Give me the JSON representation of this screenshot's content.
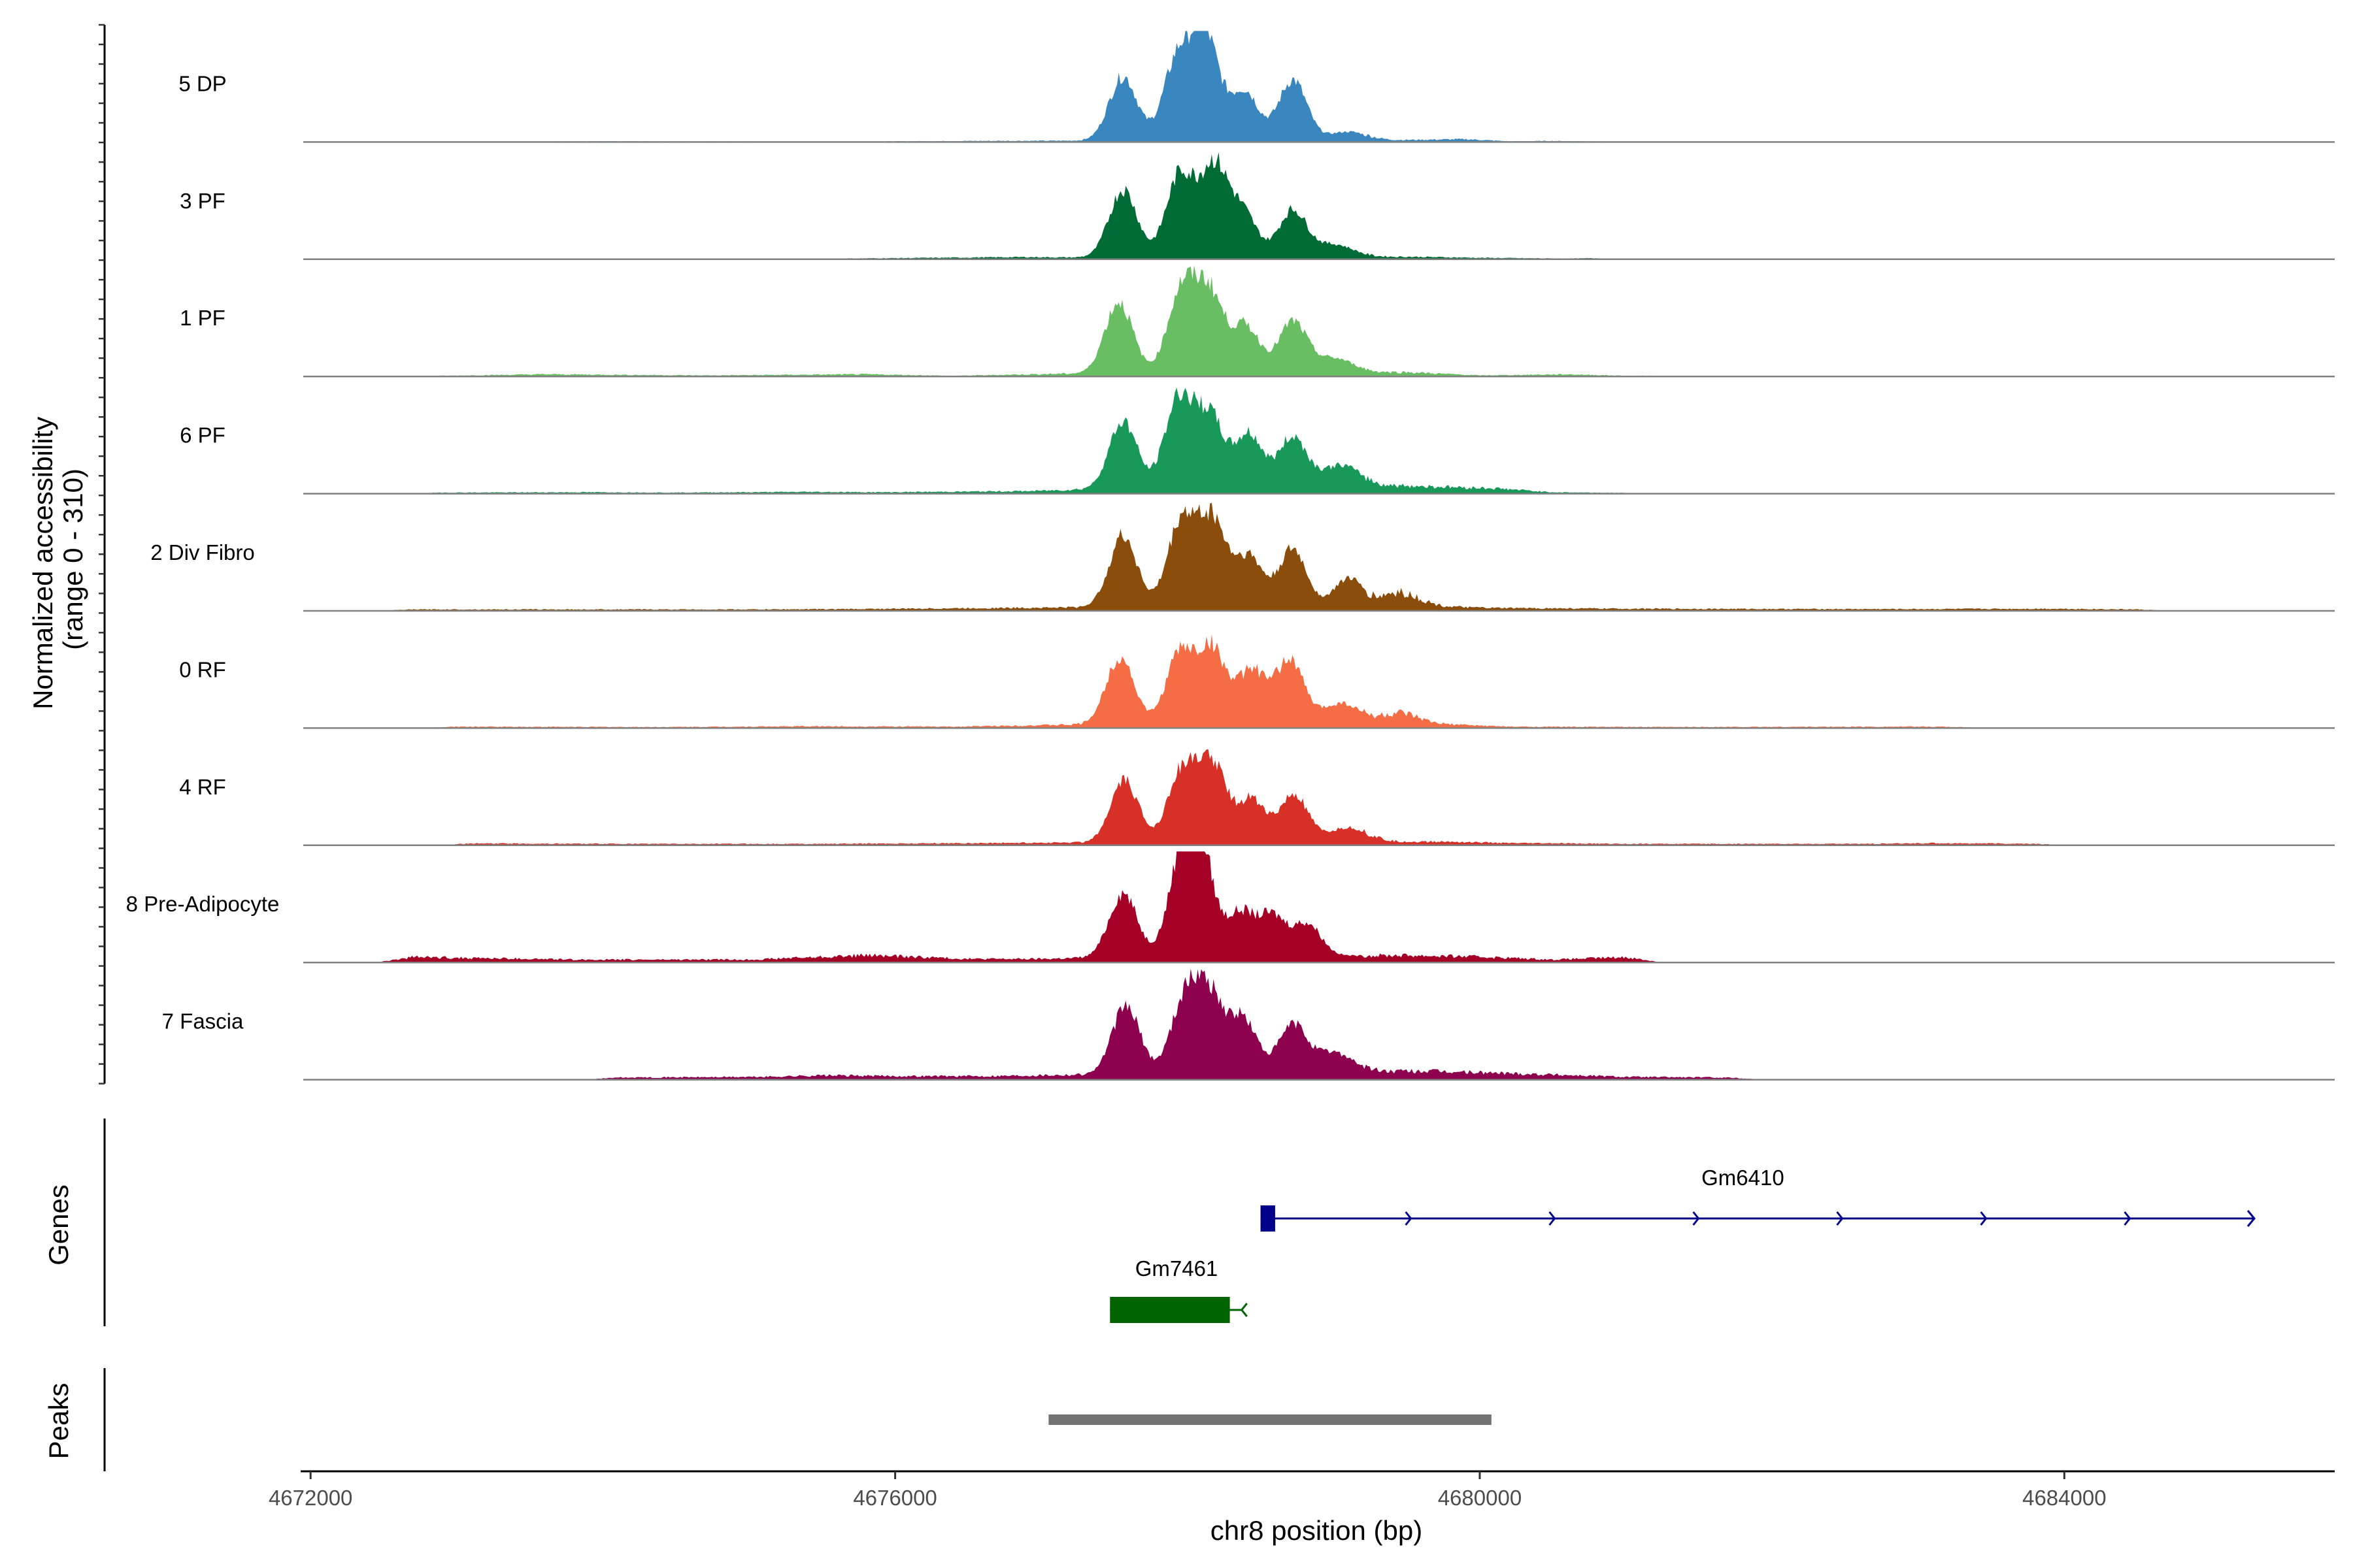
{
  "chart_data": {
    "type": "area",
    "title": "",
    "xlabel": "chr8 position (bp)",
    "ylabel": "Normalized accessibility\n(range 0 - 310)",
    "xlim": [
      4671950,
      4685850
    ],
    "ylim": [
      0,
      310
    ],
    "x_ticks": [
      4672000,
      4676000,
      4680000,
      4684000
    ],
    "x_tick_labels": [
      "4672000",
      "4676000",
      "4680000",
      "4684000"
    ],
    "tracks": [
      {
        "name": "5 DP",
        "color": "#3a87c0",
        "background": [
          [
            4673400,
            1
          ],
          [
            4674000,
            2
          ],
          [
            4675600,
            1
          ],
          [
            4676500,
            3
          ],
          [
            4677400,
            4
          ],
          [
            4679200,
            4
          ],
          [
            4679900,
            8
          ],
          [
            4680200,
            2
          ],
          [
            4680500,
            3
          ],
          [
            4680700,
            2
          ],
          [
            4681000,
            1
          ]
        ],
        "peaks": [
          [
            4677560,
            180
          ],
          [
            4677930,
            220
          ],
          [
            4678120,
            290
          ],
          [
            4678390,
            140
          ],
          [
            4678720,
            170
          ],
          [
            4679100,
            25
          ]
        ]
      },
      {
        "name": "3 PF",
        "color": "#006b35",
        "background": [
          [
            4675600,
            2
          ],
          [
            4676900,
            6
          ],
          [
            4677200,
            5
          ],
          [
            4679500,
            7
          ],
          [
            4680000,
            4
          ],
          [
            4680600,
            2
          ],
          [
            4680800,
            3
          ]
        ],
        "peaks": [
          [
            4677560,
            190
          ],
          [
            4677950,
            230
          ],
          [
            4678180,
            250
          ],
          [
            4678380,
            120
          ],
          [
            4678720,
            130
          ],
          [
            4679000,
            35
          ]
        ]
      },
      {
        "name": "1 PF",
        "color": "#69be63",
        "background": [
          [
            4672900,
            2
          ],
          [
            4673600,
            6
          ],
          [
            4674700,
            3
          ],
          [
            4675800,
            6
          ],
          [
            4676400,
            2
          ],
          [
            4677200,
            8
          ],
          [
            4679500,
            12
          ],
          [
            4680000,
            3
          ],
          [
            4680600,
            6
          ],
          [
            4681000,
            2
          ],
          [
            4681200,
            2
          ]
        ],
        "peaks": [
          [
            4677530,
            200
          ],
          [
            4677960,
            230
          ],
          [
            4678150,
            220
          ],
          [
            4678400,
            130
          ],
          [
            4678720,
            140
          ],
          [
            4679000,
            40
          ]
        ]
      },
      {
        "name": "6 PF",
        "color": "#18995a",
        "background": [
          [
            4672900,
            3
          ],
          [
            4673900,
            4
          ],
          [
            4674500,
            3
          ],
          [
            4675400,
            5
          ],
          [
            4675900,
            4
          ],
          [
            4676900,
            7
          ],
          [
            4677300,
            12
          ],
          [
            4679500,
            22
          ],
          [
            4680100,
            15
          ],
          [
            4680500,
            4
          ],
          [
            4681000,
            2
          ]
        ],
        "peaks": [
          [
            4677560,
            190
          ],
          [
            4677940,
            250
          ],
          [
            4678150,
            200
          ],
          [
            4678420,
            150
          ],
          [
            4678720,
            140
          ],
          [
            4679050,
            60
          ]
        ]
      },
      {
        "name": "2 Div Fibro",
        "color": "#8b4d0b",
        "background": [
          [
            4672700,
            4
          ],
          [
            4673400,
            4
          ],
          [
            4674000,
            4
          ],
          [
            4675000,
            4
          ],
          [
            4675700,
            5
          ],
          [
            4676700,
            8
          ],
          [
            4677300,
            10
          ],
          [
            4679700,
            12
          ],
          [
            4680100,
            8
          ],
          [
            4681000,
            6
          ],
          [
            4682500,
            5
          ],
          [
            4683000,
            5
          ],
          [
            4683900,
            6
          ],
          [
            4684500,
            4
          ]
        ],
        "peaks": [
          [
            4677560,
            200
          ],
          [
            4677960,
            240
          ],
          [
            4678170,
            240
          ],
          [
            4678420,
            140
          ],
          [
            4678720,
            160
          ],
          [
            4679100,
            80
          ],
          [
            4679450,
            40
          ]
        ]
      },
      {
        "name": "0 RF",
        "color": "#f46d45",
        "background": [
          [
            4673000,
            4
          ],
          [
            4674400,
            3
          ],
          [
            4675400,
            5
          ],
          [
            4676400,
            4
          ],
          [
            4677300,
            10
          ],
          [
            4679800,
            10
          ],
          [
            4680200,
            4
          ],
          [
            4681300,
            3
          ],
          [
            4682800,
            4
          ],
          [
            4683200,
            4
          ]
        ],
        "peaks": [
          [
            4677540,
            190
          ],
          [
            4677950,
            200
          ],
          [
            4678170,
            210
          ],
          [
            4678440,
            150
          ],
          [
            4678700,
            180
          ],
          [
            4679050,
            60
          ],
          [
            4679450,
            30
          ]
        ]
      },
      {
        "name": "4 RF",
        "color": "#d73027",
        "background": [
          [
            4673100,
            5
          ],
          [
            4674200,
            4
          ],
          [
            4675500,
            4
          ],
          [
            4676600,
            6
          ],
          [
            4677300,
            8
          ],
          [
            4679800,
            10
          ],
          [
            4680200,
            6
          ],
          [
            4681000,
            4
          ],
          [
            4682700,
            4
          ],
          [
            4683100,
            6
          ],
          [
            4683800,
            4
          ]
        ],
        "peaks": [
          [
            4677570,
            170
          ],
          [
            4677960,
            200
          ],
          [
            4678170,
            220
          ],
          [
            4678440,
            120
          ],
          [
            4678730,
            130
          ],
          [
            4679100,
            40
          ]
        ]
      },
      {
        "name": "8 Pre-Adipocyte",
        "color": "#a50026",
        "background": [
          [
            4672700,
            15
          ],
          [
            4673800,
            8
          ],
          [
            4675000,
            8
          ],
          [
            4675800,
            20
          ],
          [
            4676200,
            15
          ],
          [
            4676500,
            10
          ],
          [
            4677000,
            10
          ],
          [
            4677400,
            14
          ],
          [
            4679500,
            20
          ],
          [
            4680000,
            16
          ],
          [
            4680500,
            8
          ],
          [
            4681000,
            15
          ]
        ],
        "peaks": [
          [
            4677560,
            180
          ],
          [
            4677960,
            230
          ],
          [
            4678080,
            290
          ],
          [
            4678360,
            120
          ],
          [
            4678580,
            110
          ],
          [
            4678820,
            90
          ]
        ]
      },
      {
        "name": "7 Fascia",
        "color": "#8c004e",
        "background": [
          [
            4674100,
            6
          ],
          [
            4675100,
            8
          ],
          [
            4675500,
            12
          ],
          [
            4676000,
            10
          ],
          [
            4676600,
            10
          ],
          [
            4677200,
            14
          ],
          [
            4679600,
            24
          ],
          [
            4680200,
            18
          ],
          [
            4681000,
            8
          ],
          [
            4681700,
            6
          ]
        ],
        "peaks": [
          [
            4677580,
            190
          ],
          [
            4677980,
            200
          ],
          [
            4678150,
            210
          ],
          [
            4678380,
            150
          ],
          [
            4678720,
            130
          ],
          [
            4679000,
            55
          ]
        ]
      }
    ],
    "genes": [
      {
        "name": "Gm6410",
        "strand": "+",
        "start": 4678500,
        "end": 4685300,
        "color": "#00008b",
        "exons": [
          [
            4678500,
            4678600
          ]
        ]
      },
      {
        "name": "Gm7461",
        "strand": "-",
        "start": 4677470,
        "end": 4678380,
        "color": "#006400",
        "exons": [
          [
            4677470,
            4678290
          ]
        ]
      }
    ],
    "peaks": [
      {
        "start": 4677050,
        "end": 4680080,
        "color": "#737373"
      }
    ],
    "y_axis_labels": {
      "genes": "Genes",
      "peaks": "Peaks"
    }
  }
}
